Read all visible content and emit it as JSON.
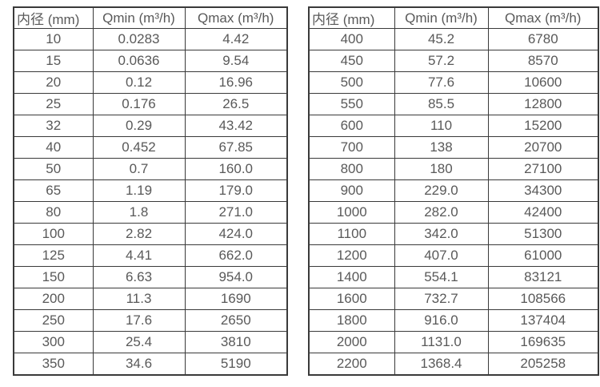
{
  "colors": {
    "border": "#3a3a3a",
    "text": "#595959",
    "background": "#ffffff"
  },
  "tables": [
    {
      "name": "flow-table-small-diameter",
      "headers": [
        "内径 (mm)",
        "Qmin (m³/h)",
        "Qmax (m³/h)"
      ],
      "rows": [
        [
          "10",
          "0.0283",
          "4.42"
        ],
        [
          "15",
          "0.0636",
          "9.54"
        ],
        [
          "20",
          "0.12",
          "16.96"
        ],
        [
          "25",
          "0.176",
          "26.5"
        ],
        [
          "32",
          "0.29",
          "43.42"
        ],
        [
          "40",
          "0.452",
          "67.85"
        ],
        [
          "50",
          "0.7",
          "160.0"
        ],
        [
          "65",
          "1.19",
          "179.0"
        ],
        [
          "80",
          "1.8",
          "271.0"
        ],
        [
          "100",
          "2.82",
          "424.0"
        ],
        [
          "125",
          "4.41",
          "662.0"
        ],
        [
          "150",
          "6.63",
          "954.0"
        ],
        [
          "200",
          "11.3",
          "1690"
        ],
        [
          "250",
          "17.6",
          "2650"
        ],
        [
          "300",
          "25.4",
          "3810"
        ],
        [
          "350",
          "34.6",
          "5190"
        ]
      ]
    },
    {
      "name": "flow-table-large-diameter",
      "headers": [
        "内径 (mm)",
        "Qmin (m³/h)",
        "Qmax (m³/h)"
      ],
      "rows": [
        [
          "400",
          "45.2",
          "6780"
        ],
        [
          "450",
          "57.2",
          "8570"
        ],
        [
          "500",
          "77.6",
          "10600"
        ],
        [
          "550",
          "85.5",
          "12800"
        ],
        [
          "600",
          "110",
          "15200"
        ],
        [
          "700",
          "138",
          "20700"
        ],
        [
          "800",
          "180",
          "27100"
        ],
        [
          "900",
          "229.0",
          "34300"
        ],
        [
          "1000",
          "282.0",
          "42400"
        ],
        [
          "1100",
          "342.0",
          "51300"
        ],
        [
          "1200",
          "407.0",
          "61000"
        ],
        [
          "1400",
          "554.1",
          "83121"
        ],
        [
          "1600",
          "732.7",
          "108566"
        ],
        [
          "1800",
          "916.0",
          "137404"
        ],
        [
          "2000",
          "1131.0",
          "169635"
        ],
        [
          "2200",
          "1368.4",
          "205258"
        ]
      ]
    }
  ]
}
